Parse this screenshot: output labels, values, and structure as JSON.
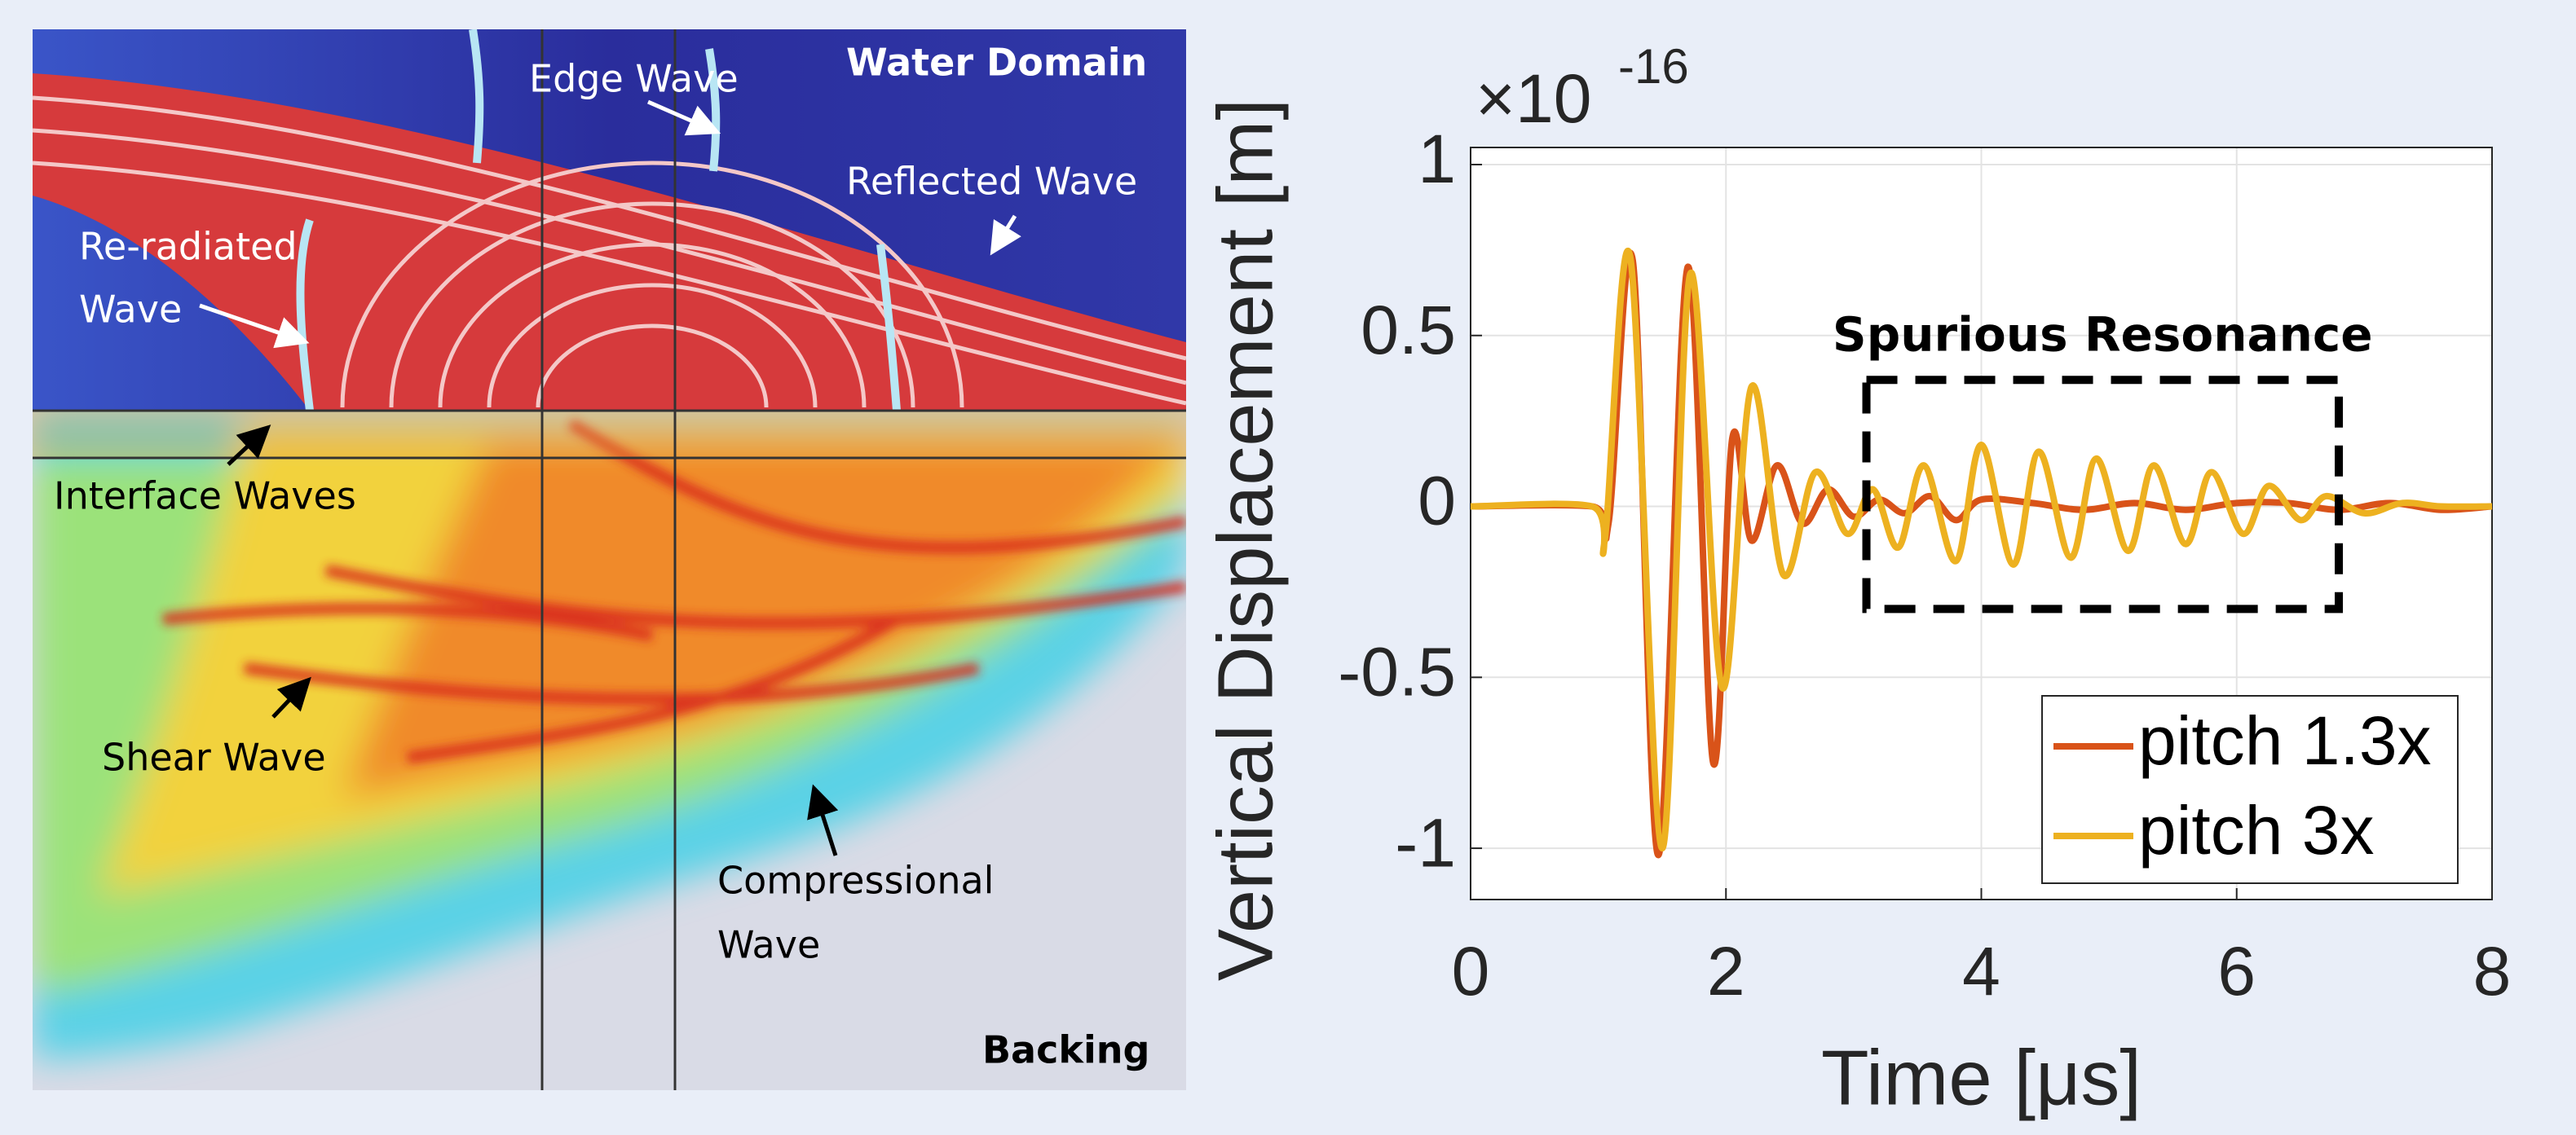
{
  "simulation": {
    "labels": {
      "water": "Water Domain",
      "edge": "Edge Wave",
      "reflected": "Reflected Wave",
      "reradiated": [
        "Re-radiated",
        "Wave"
      ],
      "interface": "Interface Waves",
      "shear": "Shear Wave",
      "compressional": [
        "Compressional",
        "Wave"
      ],
      "backing": "Backing"
    }
  },
  "chart_data": {
    "type": "line",
    "xlabel": "Time [μs]",
    "ylabel": "Vertical Displacement [m]",
    "y_exponent": {
      "base": "×10",
      "power": "-16"
    },
    "xlim": [
      0,
      8
    ],
    "xticks": [
      0,
      2,
      4,
      6,
      8
    ],
    "ylim": [
      -1.15,
      1.05
    ],
    "yticks": [
      -1,
      -0.5,
      0,
      0.5,
      1
    ],
    "grid": true,
    "legend": "lower right",
    "annotation": {
      "text": "Spurious Resonance",
      "xrange": [
        3.1,
        6.8
      ],
      "yrange": [
        -0.3,
        0.37
      ]
    },
    "series": [
      {
        "name": "pitch 1.3x",
        "color": "#d95319",
        "x": [
          0,
          0.95,
          1.08,
          1.27,
          1.47,
          1.7,
          1.9,
          2.05,
          2.2,
          2.4,
          2.6,
          2.8,
          3.0,
          3.2,
          3.4,
          3.6,
          3.8,
          4.0,
          4.4,
          4.8,
          5.2,
          5.6,
          6.0,
          6.4,
          6.8,
          7.2,
          7.6,
          8.0
        ],
        "values": [
          0,
          0,
          -0.05,
          0.72,
          -1.02,
          0.7,
          -0.75,
          0.2,
          -0.1,
          0.12,
          -0.05,
          0.05,
          -0.03,
          0.02,
          -0.02,
          0.03,
          -0.04,
          0.02,
          0.01,
          -0.01,
          0.01,
          -0.01,
          0.01,
          0.01,
          -0.01,
          0.01,
          -0.01,
          0
        ]
      },
      {
        "name": "pitch 3x",
        "color": "#edb120",
        "x": [
          0,
          0.95,
          1.05,
          1.25,
          1.5,
          1.72,
          1.97,
          2.2,
          2.45,
          2.7,
          2.95,
          3.15,
          3.35,
          3.55,
          3.8,
          4.0,
          4.25,
          4.45,
          4.7,
          4.9,
          5.15,
          5.35,
          5.6,
          5.8,
          6.05,
          6.25,
          6.5,
          6.7,
          7.0,
          7.3,
          7.6,
          8.0
        ],
        "values": [
          0,
          0,
          -0.1,
          0.73,
          -1.0,
          0.68,
          -0.53,
          0.35,
          -0.2,
          0.1,
          -0.08,
          0.05,
          -0.12,
          0.12,
          -0.16,
          0.18,
          -0.17,
          0.16,
          -0.15,
          0.14,
          -0.13,
          0.12,
          -0.11,
          0.1,
          -0.08,
          0.06,
          -0.04,
          0.03,
          -0.02,
          0.01,
          0,
          0
        ]
      }
    ]
  }
}
